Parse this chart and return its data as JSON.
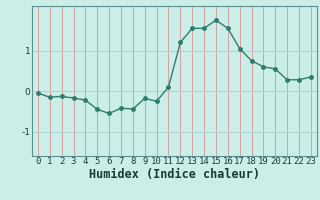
{
  "x": [
    0,
    1,
    2,
    3,
    4,
    5,
    6,
    7,
    8,
    9,
    10,
    11,
    12,
    13,
    14,
    15,
    16,
    17,
    18,
    19,
    20,
    21,
    22,
    23
  ],
  "y": [
    -0.05,
    -0.15,
    -0.13,
    -0.17,
    -0.22,
    -0.45,
    -0.55,
    -0.42,
    -0.44,
    -0.18,
    -0.25,
    0.1,
    1.2,
    1.55,
    1.55,
    1.75,
    1.55,
    1.05,
    0.75,
    0.6,
    0.55,
    0.28,
    0.28,
    0.35
  ],
  "line_color": "#2e7d6e",
  "marker": "o",
  "markersize": 2.5,
  "linewidth": 1.0,
  "bg_color": "#cceee8",
  "vgrid_color": "#d4a0a0",
  "hgrid_color": "#b0d0cc",
  "xlabel": "Humidex (Indice chaleur)",
  "ylim": [
    -1.6,
    2.1
  ],
  "xlim": [
    -0.5,
    23.5
  ],
  "yticks": [
    -1,
    0,
    1
  ],
  "xticks": [
    0,
    1,
    2,
    3,
    4,
    5,
    6,
    7,
    8,
    9,
    10,
    11,
    12,
    13,
    14,
    15,
    16,
    17,
    18,
    19,
    20,
    21,
    22,
    23
  ],
  "tick_fontsize": 6.5,
  "xlabel_fontsize": 8.5,
  "spine_color": "#5a9090"
}
